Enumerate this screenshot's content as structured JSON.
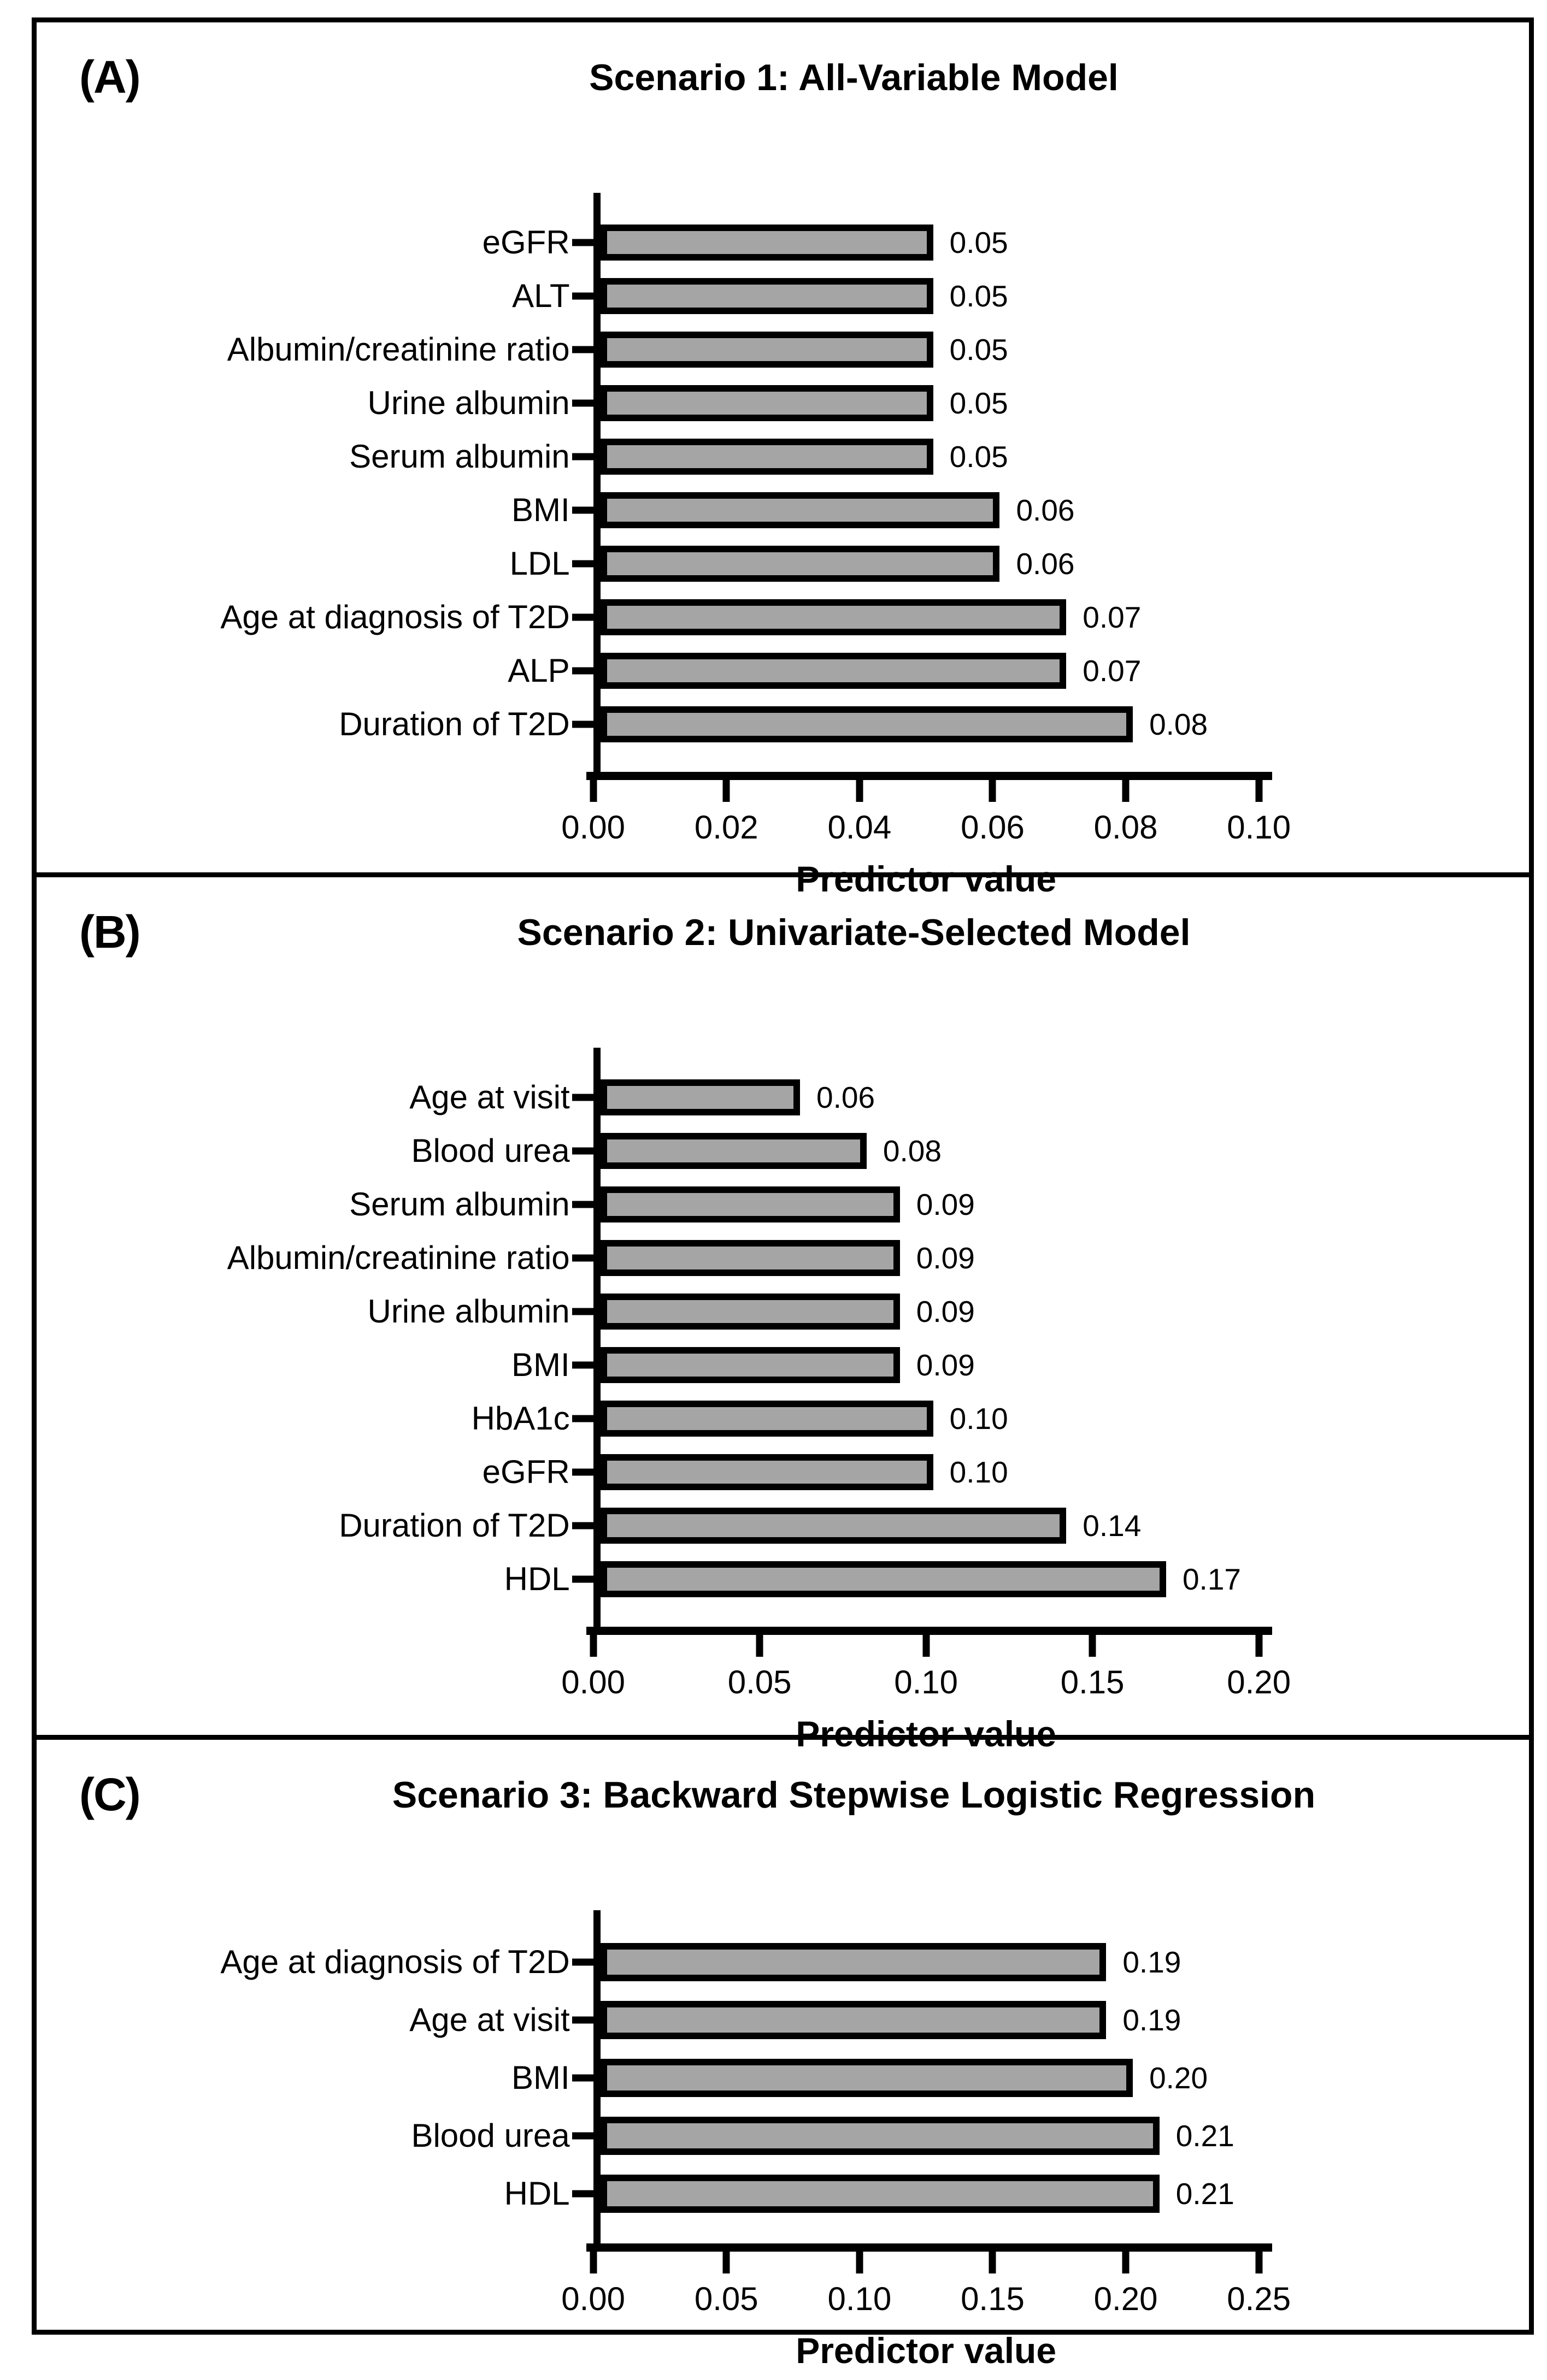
{
  "figure": {
    "background": "#ffffff",
    "frame_border_color": "#000000",
    "bar_fill": "#a5a5a5",
    "bar_border": "#000000",
    "text_color": "#000000"
  },
  "chart_data": [
    {
      "type": "bar",
      "orientation": "horizontal",
      "panel_letter": "(A)",
      "title": "Scenario 1: All-Variable Model",
      "xlabel": "Predictor value",
      "xlim": [
        0,
        0.1
      ],
      "grid": false,
      "categories": [
        "eGFR",
        "ALT",
        "Albumin/creatinine ratio",
        "Urine albumin",
        "Serum albumin",
        "BMI",
        "LDL",
        "Age at diagnosis of T2D",
        "ALP",
        "Duration of T2D"
      ],
      "values": [
        0.05,
        0.05,
        0.05,
        0.05,
        0.05,
        0.06,
        0.06,
        0.07,
        0.07,
        0.08
      ],
      "value_labels": [
        "0.05",
        "0.05",
        "0.05",
        "0.05",
        "0.05",
        "0.06",
        "0.06",
        "0.07",
        "0.07",
        "0.08"
      ],
      "xtick_values": [
        0,
        0.02,
        0.04,
        0.06,
        0.08,
        0.1
      ],
      "xtick_labels": [
        "0.00",
        "0.02",
        "0.04",
        "0.06",
        "0.08",
        "0.10"
      ]
    },
    {
      "type": "bar",
      "orientation": "horizontal",
      "panel_letter": "(B)",
      "title": "Scenario 2: Univariate-Selected Model",
      "xlabel": "Predictor value",
      "xlim": [
        0,
        0.2
      ],
      "grid": false,
      "categories": [
        "Age at visit",
        "Blood urea",
        "Serum albumin",
        "Albumin/creatinine ratio",
        "Urine albumin",
        "BMI",
        "HbA1c",
        "eGFR",
        "Duration of T2D",
        "HDL"
      ],
      "values": [
        0.06,
        0.08,
        0.09,
        0.09,
        0.09,
        0.09,
        0.1,
        0.1,
        0.14,
        0.17
      ],
      "value_labels": [
        "0.06",
        "0.08",
        "0.09",
        "0.09",
        "0.09",
        "0.09",
        "0.10",
        "0.10",
        "0.14",
        "0.17"
      ],
      "xtick_values": [
        0,
        0.05,
        0.1,
        0.15,
        0.2
      ],
      "xtick_labels": [
        "0.00",
        "0.05",
        "0.10",
        "0.15",
        "0.20"
      ]
    },
    {
      "type": "bar",
      "orientation": "horizontal",
      "panel_letter": "(C)",
      "title": "Scenario 3: Backward Stepwise Logistic Regression",
      "xlabel": "Predictor value",
      "xlim": [
        0,
        0.25
      ],
      "grid": false,
      "categories": [
        "Age at diagnosis of T2D",
        "Age at visit",
        "BMI",
        "Blood urea",
        "HDL"
      ],
      "values": [
        0.19,
        0.19,
        0.2,
        0.21,
        0.21
      ],
      "value_labels": [
        "0.19",
        "0.19",
        "0.20",
        "0.21",
        "0.21"
      ],
      "xtick_values": [
        0,
        0.05,
        0.1,
        0.15,
        0.2,
        0.25
      ],
      "xtick_labels": [
        "0.00",
        "0.05",
        "0.10",
        "0.15",
        "0.20",
        "0.25"
      ]
    }
  ]
}
